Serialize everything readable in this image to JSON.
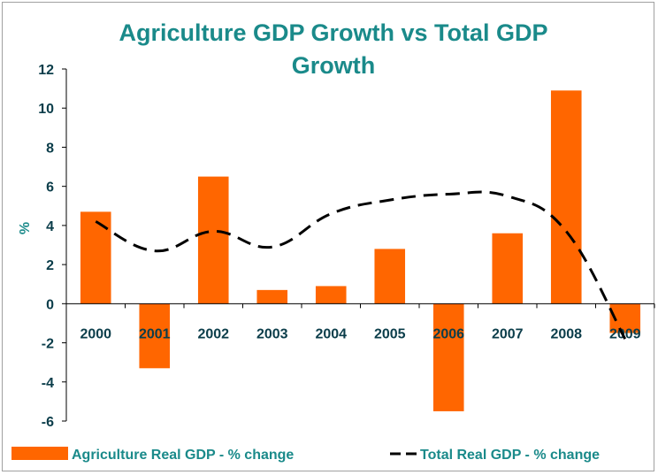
{
  "chart_data": {
    "type": "bar",
    "title_lines": [
      "Agriculture GDP Growth vs Total GDP",
      "Growth"
    ],
    "xlabel": "",
    "ylabel": "%",
    "ylim": [
      -6,
      12
    ],
    "yticks": [
      -6,
      -4,
      -2,
      0,
      2,
      4,
      6,
      8,
      10,
      12
    ],
    "categories": [
      "2000",
      "2001",
      "2002",
      "2003",
      "2004",
      "2005",
      "2006",
      "2007",
      "2008",
      "2009"
    ],
    "series": [
      {
        "name": "Agriculture Real GDP - % change",
        "type": "bar",
        "color": "#ff6600",
        "values": [
          4.7,
          -3.3,
          6.5,
          0.7,
          0.9,
          2.8,
          -5.5,
          3.6,
          10.9,
          -1.5
        ]
      },
      {
        "name": "Total Real GDP - % change",
        "type": "line",
        "color": "#000000",
        "style": "dashed",
        "values": [
          4.2,
          2.7,
          3.7,
          2.9,
          4.6,
          5.3,
          5.6,
          5.5,
          3.7,
          -1.8
        ]
      }
    ],
    "grid": false,
    "legend": "bottom"
  }
}
